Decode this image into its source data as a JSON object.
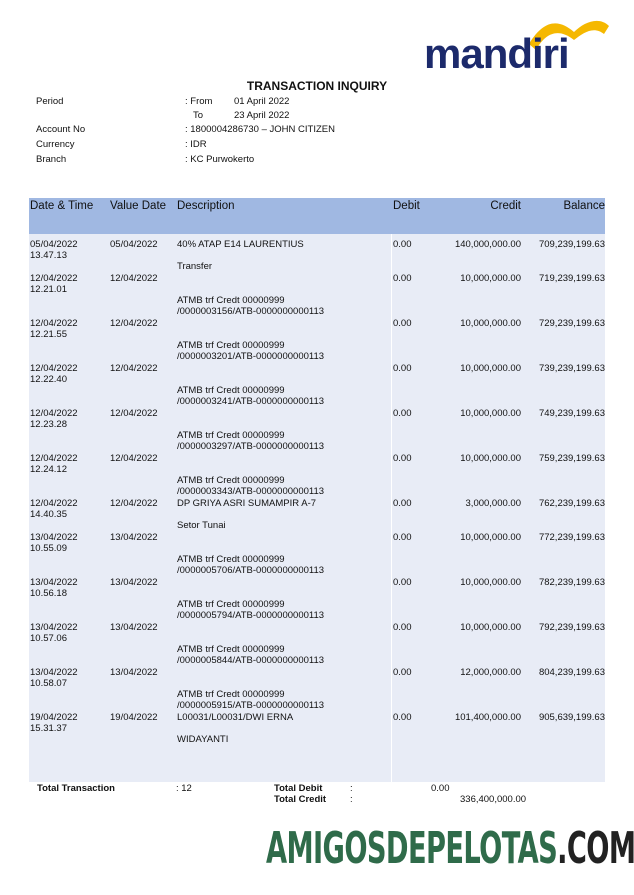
{
  "logo": {
    "text": "mandiri",
    "swoosh_color": "#f5b800",
    "text_color": "#1c2a6b"
  },
  "title": "TRANSACTION INQUIRY",
  "info": {
    "period_label": "Period",
    "from_label": ": From",
    "from": "01 April 2022",
    "to_label": "To",
    "to": "23 April 2022",
    "account_label": "Account No",
    "account": ": 1800004286730 – JOHN CITIZEN",
    "currency_label": "Currency",
    "currency": ": IDR",
    "branch_label": "Branch",
    "branch": ": KC Purwokerto"
  },
  "table": {
    "header_color": "#a0b8e2",
    "columns": [
      "Date & Time",
      "Value Date",
      "Description",
      "Debit",
      "Credit",
      "Balance"
    ],
    "rows": [
      {
        "date": "05/04/2022",
        "time": "13.47.13",
        "value_date": "05/04/2022",
        "desc": [
          "40% ATAP E14 LAURENTIUS",
          "Transfer"
        ],
        "debit": "0.00",
        "credit": "140,000,000.00",
        "balance": "709,239,199.63"
      },
      {
        "date": "12/04/2022",
        "time": "12.21.01",
        "value_date": "12/04/2022",
        "desc": [
          "",
          "ATMB trf Credt 00000999",
          "/0000003156/ATB-0000000000113"
        ],
        "debit": "0.00",
        "credit": "10,000,000.00",
        "balance": "719,239,199.63"
      },
      {
        "date": "12/04/2022",
        "time": "12.21.55",
        "value_date": "12/04/2022",
        "desc": [
          "",
          "ATMB trf Credt 00000999",
          "/0000003201/ATB-0000000000113"
        ],
        "debit": "0.00",
        "credit": "10,000,000.00",
        "balance": "729,239,199.63"
      },
      {
        "date": "12/04/2022",
        "time": "12.22.40",
        "value_date": "12/04/2022",
        "desc": [
          "",
          "ATMB trf Credt 00000999",
          "/0000003241/ATB-0000000000113"
        ],
        "debit": "0.00",
        "credit": "10,000,000.00",
        "balance": "739,239,199.63"
      },
      {
        "date": "12/04/2022",
        "time": "12.23.28",
        "value_date": "12/04/2022",
        "desc": [
          "",
          "ATMB trf Credt 00000999",
          "/0000003297/ATB-0000000000113"
        ],
        "debit": "0.00",
        "credit": "10,000,000.00",
        "balance": "749,239,199.63"
      },
      {
        "date": "12/04/2022",
        "time": "12.24.12",
        "value_date": "12/04/2022",
        "desc": [
          "",
          "ATMB trf Credt 00000999",
          "/0000003343/ATB-0000000000113"
        ],
        "debit": "0.00",
        "credit": "10,000,000.00",
        "balance": "759,239,199.63"
      },
      {
        "date": "12/04/2022",
        "time": "14.40.35",
        "value_date": "12/04/2022",
        "desc": [
          "DP GRIYA ASRI SUMAMPIR A-7",
          "Setor Tunai"
        ],
        "debit": "0.00",
        "credit": "3,000,000.00",
        "balance": "762,239,199.63"
      },
      {
        "date": "13/04/2022",
        "time": "10.55.09",
        "value_date": "13/04/2022",
        "desc": [
          "",
          "ATMB trf Credt 00000999",
          "/0000005706/ATB-0000000000113"
        ],
        "debit": "0.00",
        "credit": "10,000,000.00",
        "balance": "772,239,199.63"
      },
      {
        "date": "13/04/2022",
        "time": "10.56.18",
        "value_date": "13/04/2022",
        "desc": [
          "",
          "ATMB trf Credt 00000999",
          "/0000005794/ATB-0000000000113"
        ],
        "debit": "0.00",
        "credit": "10,000,000.00",
        "balance": "782,239,199.63"
      },
      {
        "date": "13/04/2022",
        "time": "10.57.06",
        "value_date": "13/04/2022",
        "desc": [
          "",
          "ATMB trf Credt 00000999",
          "/0000005844/ATB-0000000000113"
        ],
        "debit": "0.00",
        "credit": "10,000,000.00",
        "balance": "792,239,199.63"
      },
      {
        "date": "13/04/2022",
        "time": "10.58.07",
        "value_date": "13/04/2022",
        "desc": [
          "",
          "ATMB trf Credt 00000999",
          "/0000005915/ATB-0000000000113"
        ],
        "debit": "0.00",
        "credit": "12,000,000.00",
        "balance": "804,239,199.63"
      },
      {
        "date": "19/04/2022",
        "time": "15.31.37",
        "value_date": "19/04/2022",
        "desc": [
          "L00031/L00031/DWI ERNA",
          "WIDAYANTI"
        ],
        "debit": "0.00",
        "credit": "101,400,000.00",
        "balance": "905,639,199.63"
      }
    ]
  },
  "totals": {
    "transaction_label": "Total Transaction",
    "transaction": ": 12",
    "debit_label": "Total Debit",
    "debit_colon": ":",
    "debit": "0.00",
    "credit_label": "Total Credit",
    "credit_colon": ":",
    "credit": "336,400,000.00"
  },
  "watermark": {
    "main": "AMIGOSDEPELOTAS",
    "suffix": ".COM",
    "color": "#2f6b4a"
  }
}
